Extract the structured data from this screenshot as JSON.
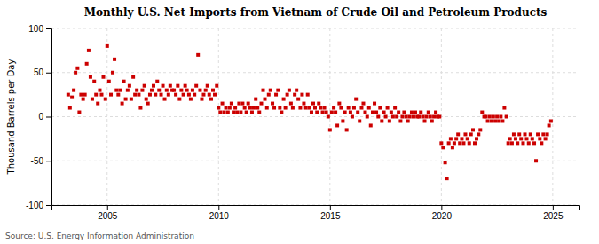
{
  "chart_data": {
    "type": "scatter",
    "title": "Monthly U.S. Net Imports from Vietnam of Crude Oil and Petroleum Products",
    "ylabel": "Thousand Barrels per Day",
    "annotations": [
      "Source: U.S. Energy Information Administration"
    ],
    "color": "#cc0000",
    "marker": "square",
    "grid": true,
    "xlim": [
      2002.5,
      2026.2
    ],
    "xticks": [
      2005,
      2010,
      2015,
      2020,
      2025
    ],
    "ylim": [
      -100,
      100
    ],
    "yticks": [
      -100,
      -50,
      0,
      50,
      100
    ],
    "x": [
      2003.25,
      2003.33,
      2003.42,
      2003.5,
      2003.58,
      2003.67,
      2003.75,
      2003.83,
      2003.92,
      2004.0,
      2004.08,
      2004.17,
      2004.25,
      2004.33,
      2004.42,
      2004.5,
      2004.58,
      2004.67,
      2004.75,
      2004.83,
      2004.92,
      2005.0,
      2005.08,
      2005.17,
      2005.25,
      2005.33,
      2005.42,
      2005.5,
      2005.58,
      2005.67,
      2005.75,
      2005.83,
      2005.92,
      2006.0,
      2006.08,
      2006.17,
      2006.25,
      2006.33,
      2006.42,
      2006.5,
      2006.58,
      2006.67,
      2006.75,
      2006.83,
      2006.92,
      2007.0,
      2007.08,
      2007.17,
      2007.25,
      2007.33,
      2007.42,
      2007.5,
      2007.58,
      2007.67,
      2007.75,
      2007.83,
      2007.92,
      2008.0,
      2008.08,
      2008.17,
      2008.25,
      2008.33,
      2008.42,
      2008.5,
      2008.58,
      2008.67,
      2008.75,
      2008.83,
      2008.92,
      2009.0,
      2009.08,
      2009.17,
      2009.25,
      2009.33,
      2009.42,
      2009.5,
      2009.58,
      2009.67,
      2009.75,
      2009.83,
      2009.92,
      2010.0,
      2010.08,
      2010.17,
      2010.25,
      2010.33,
      2010.42,
      2010.5,
      2010.58,
      2010.67,
      2010.75,
      2010.83,
      2010.92,
      2011.0,
      2011.08,
      2011.17,
      2011.25,
      2011.33,
      2011.42,
      2011.5,
      2011.58,
      2011.67,
      2011.75,
      2011.83,
      2011.92,
      2012.0,
      2012.08,
      2012.17,
      2012.25,
      2012.33,
      2012.42,
      2012.5,
      2012.58,
      2012.67,
      2012.75,
      2012.83,
      2012.92,
      2013.0,
      2013.08,
      2013.17,
      2013.25,
      2013.33,
      2013.42,
      2013.5,
      2013.58,
      2013.67,
      2013.75,
      2013.83,
      2013.92,
      2014.0,
      2014.08,
      2014.17,
      2014.25,
      2014.33,
      2014.42,
      2014.5,
      2014.58,
      2014.67,
      2014.75,
      2014.83,
      2014.92,
      2015.0,
      2015.08,
      2015.17,
      2015.25,
      2015.33,
      2015.42,
      2015.5,
      2015.58,
      2015.67,
      2015.75,
      2015.83,
      2015.92,
      2016.0,
      2016.08,
      2016.17,
      2016.25,
      2016.33,
      2016.42,
      2016.5,
      2016.58,
      2016.67,
      2016.75,
      2016.83,
      2016.92,
      2017.0,
      2017.08,
      2017.17,
      2017.25,
      2017.33,
      2017.42,
      2017.5,
      2017.58,
      2017.67,
      2017.75,
      2017.83,
      2017.92,
      2018.0,
      2018.08,
      2018.17,
      2018.25,
      2018.33,
      2018.42,
      2018.5,
      2018.58,
      2018.67,
      2018.75,
      2018.83,
      2018.92,
      2019.0,
      2019.08,
      2019.17,
      2019.25,
      2019.33,
      2019.42,
      2019.5,
      2019.58,
      2019.67,
      2019.75,
      2019.83,
      2019.92,
      2020.0,
      2020.08,
      2020.17,
      2020.25,
      2020.33,
      2020.42,
      2020.5,
      2020.58,
      2020.67,
      2020.75,
      2020.83,
      2020.92,
      2021.0,
      2021.08,
      2021.17,
      2021.25,
      2021.33,
      2021.42,
      2021.5,
      2021.58,
      2021.67,
      2021.75,
      2021.83,
      2021.92,
      2022.0,
      2022.08,
      2022.17,
      2022.25,
      2022.33,
      2022.42,
      2022.5,
      2022.58,
      2022.67,
      2022.75,
      2022.83,
      2022.92,
      2023.0,
      2023.08,
      2023.17,
      2023.25,
      2023.33,
      2023.42,
      2023.5,
      2023.58,
      2023.67,
      2023.75,
      2023.83,
      2023.92,
      2024.0,
      2024.08,
      2024.17,
      2024.25,
      2024.33,
      2024.42,
      2024.5,
      2024.58,
      2024.67,
      2024.75,
      2024.83,
      2024.92
    ],
    "values": [
      25,
      10,
      22,
      30,
      50,
      55,
      5,
      25,
      20,
      25,
      60,
      75,
      45,
      20,
      40,
      25,
      15,
      30,
      25,
      45,
      20,
      80,
      40,
      25,
      50,
      65,
      30,
      25,
      30,
      15,
      40,
      20,
      30,
      35,
      20,
      45,
      25,
      30,
      25,
      10,
      30,
      35,
      20,
      15,
      25,
      30,
      35,
      25,
      40,
      30,
      25,
      35,
      20,
      30,
      25,
      35,
      30,
      30,
      25,
      35,
      20,
      30,
      25,
      35,
      30,
      25,
      20,
      30,
      25,
      35,
      70,
      30,
      20,
      25,
      30,
      35,
      25,
      20,
      30,
      25,
      35,
      10,
      5,
      15,
      5,
      10,
      5,
      10,
      15,
      5,
      10,
      5,
      15,
      5,
      15,
      10,
      5,
      15,
      10,
      5,
      10,
      20,
      10,
      5,
      15,
      30,
      20,
      10,
      25,
      30,
      15,
      10,
      25,
      30,
      10,
      5,
      20,
      10,
      25,
      30,
      15,
      10,
      25,
      30,
      20,
      10,
      25,
      15,
      10,
      25,
      10,
      5,
      15,
      10,
      5,
      15,
      10,
      5,
      10,
      5,
      0,
      -15,
      5,
      10,
      5,
      -10,
      15,
      10,
      -5,
      5,
      -15,
      10,
      5,
      0,
      10,
      20,
      5,
      -5,
      10,
      15,
      5,
      0,
      10,
      -10,
      5,
      15,
      5,
      0,
      10,
      -5,
      5,
      0,
      10,
      -5,
      5,
      0,
      10,
      0,
      5,
      -5,
      0,
      5,
      0,
      -5,
      0,
      5,
      0,
      5,
      0,
      0,
      5,
      0,
      -5,
      0,
      5,
      0,
      -5,
      0,
      5,
      0,
      0,
      -30,
      -35,
      -52,
      -70,
      -30,
      -25,
      -35,
      -30,
      -25,
      -20,
      -30,
      -25,
      -30,
      -20,
      -25,
      -30,
      -20,
      -15,
      -30,
      -25,
      -20,
      -15,
      5,
      0,
      0,
      -5,
      0,
      -5,
      0,
      -5,
      0,
      -5,
      0,
      -5,
      10,
      0,
      -30,
      -25,
      -30,
      -20,
      -25,
      -30,
      -20,
      -25,
      -30,
      -20,
      -25,
      -30,
      -20,
      -25,
      -30,
      -50,
      -20,
      -25,
      -30,
      -20,
      -25,
      -20,
      -10,
      -5
    ]
  }
}
